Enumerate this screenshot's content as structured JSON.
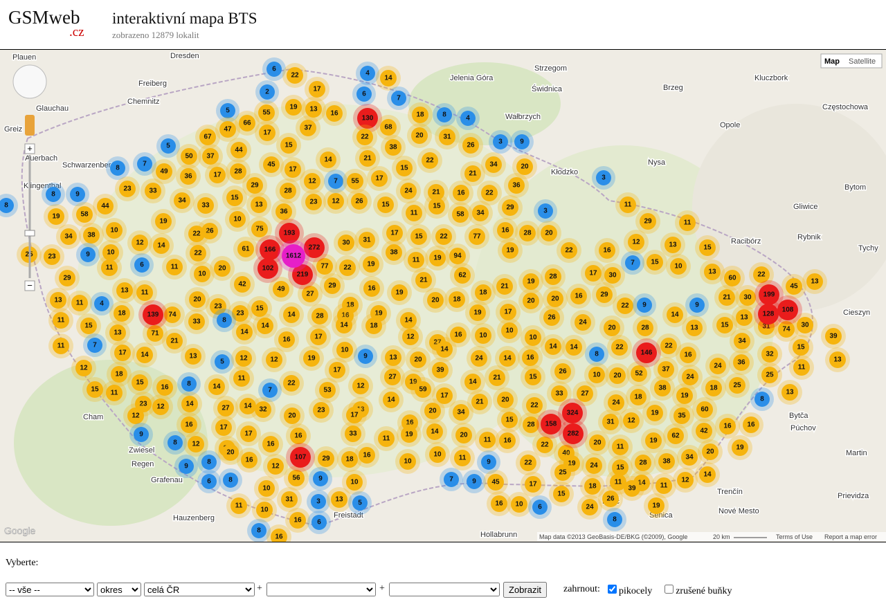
{
  "header": {
    "logo": "GSMweb",
    "logo_tld": ".cz",
    "title": "interaktivní mapa BTS",
    "subtitle": "zobrazeno 12879 lokalit"
  },
  "map": {
    "controls": {
      "map": "Map",
      "satellite": "Satellite",
      "zoom_in": "+",
      "zoom_out": "−"
    },
    "attribution": "Map data ©2013 GeoBasis-DE/BKG (©2009), Google",
    "scale": "20 km",
    "terms": "Terms of Use",
    "report": "Report a map error",
    "google": "Google",
    "places": [
      "Dresden",
      "Chemnitz",
      "Freiberg",
      "Glauchau",
      "Greiz",
      "Auerbach",
      "Schwarzenberg",
      "Klingenthal",
      "Plauen",
      "Cham",
      "Zwiesel",
      "Regen",
      "Grafenau",
      "Hauzenberg",
      "Strzegom",
      "Świdnica",
      "Wałbrzych",
      "Jelenia Góra",
      "Kłodzko",
      "Nysa",
      "Brzeg",
      "Opole",
      "Kluczbork",
      "Częstochowa",
      "Gliwice",
      "Bytom",
      "Racibórz",
      "Rybnik",
      "Tychy",
      "Cieszyn",
      "Bytča",
      "Púchov",
      "Martin",
      "Prievidza",
      "Trenčín",
      "Nové Mesto",
      "Senica",
      "Holíč",
      "Hollabrunn",
      "Freistadt"
    ],
    "markers": [
      6,
      22,
      4,
      14,
      2,
      17,
      6,
      7,
      5,
      55,
      19,
      13,
      16,
      130,
      68,
      18,
      8,
      4,
      66,
      47,
      17,
      37,
      15,
      22,
      38,
      20,
      31,
      26,
      3,
      9,
      5,
      67,
      50,
      37,
      44,
      8,
      7,
      49,
      36,
      17,
      28,
      45,
      17,
      14,
      21,
      15,
      22,
      21,
      34,
      20,
      3,
      8,
      9,
      23,
      33,
      8,
      44,
      34,
      33,
      15,
      29,
      28,
      12,
      7,
      55,
      17,
      24,
      21,
      16,
      22,
      36,
      3,
      11,
      29,
      11,
      58,
      19,
      34,
      38,
      10,
      19,
      26,
      10,
      13,
      36,
      23,
      12,
      26,
      15,
      11,
      15,
      58,
      34,
      29,
      23,
      25,
      9,
      10,
      12,
      14,
      22,
      61,
      75,
      30,
      31,
      17,
      15,
      22,
      77,
      16,
      28,
      20,
      12,
      13,
      15,
      16,
      22,
      19,
      19,
      94,
      11,
      38,
      19,
      22,
      77,
      22,
      20,
      11,
      10,
      11,
      6,
      29,
      15,
      7,
      10,
      13,
      22,
      45,
      13,
      60,
      21,
      30,
      17,
      30,
      19,
      28,
      21,
      18,
      62,
      21,
      19,
      16,
      18,
      29,
      27,
      49,
      42,
      11,
      13,
      4,
      13,
      11,
      74,
      18,
      20,
      23,
      23,
      15,
      14,
      28,
      16,
      19,
      14,
      20,
      18,
      19,
      17,
      20,
      20,
      16,
      29,
      22,
      9,
      9,
      14,
      13,
      28,
      20,
      24,
      26,
      11,
      15,
      13,
      71,
      33,
      8,
      14,
      14,
      16,
      17,
      14,
      18,
      12,
      27,
      16,
      10,
      10,
      10,
      14,
      14,
      22,
      22,
      13,
      15,
      34,
      31,
      74,
      30,
      39,
      11,
      7,
      17,
      14,
      21,
      13,
      5,
      12,
      12,
      19,
      10,
      9,
      13,
      20,
      14,
      24,
      14,
      16,
      26,
      8,
      10,
      20,
      52,
      37,
      16,
      24,
      36,
      32,
      15,
      13,
      12,
      18,
      15,
      16,
      8,
      14,
      11,
      22,
      17,
      12,
      27,
      19,
      39,
      14,
      21,
      15,
      33,
      27,
      24,
      25,
      11,
      15,
      11,
      23,
      12,
      14,
      27,
      14,
      7,
      32,
      53,
      13,
      14,
      59,
      17,
      21,
      20,
      22,
      24,
      18,
      38,
      19,
      18,
      25,
      8,
      13,
      12,
      16,
      17,
      17,
      20,
      23,
      17,
      16,
      20,
      34,
      15,
      28,
      31,
      12,
      19,
      35,
      60,
      9,
      8,
      12,
      20,
      16,
      16,
      33,
      11,
      19,
      14,
      20,
      11,
      16,
      22,
      40,
      20,
      11,
      19,
      62,
      42,
      16,
      16,
      9,
      8,
      20,
      16,
      12,
      29,
      18,
      16,
      10,
      10,
      11,
      9,
      22,
      19,
      24,
      15,
      28,
      38,
      34,
      20,
      19,
      6,
      8,
      10,
      56,
      9,
      10,
      7,
      9,
      45,
      17,
      25,
      18,
      11,
      14,
      11,
      12,
      14,
      11,
      10,
      31,
      3,
      13,
      5,
      16,
      10,
      6,
      15,
      24,
      26,
      39,
      19,
      8,
      16,
      16,
      6,
      8,
      139,
      193,
      166,
      272,
      102,
      219,
      199,
      108,
      128,
      146,
      324,
      158,
      282,
      107,
      1612
    ]
  },
  "form": {
    "label": "Vyberte:",
    "selects": [
      "-- vše --",
      "okres",
      "celá ČR"
    ],
    "plus": "+",
    "button": "Zobrazit",
    "include_label": "zahrnout:",
    "checkboxes": [
      {
        "label": "pikocely",
        "checked": true
      },
      {
        "label": "zrušené buňky",
        "checked": false
      }
    ]
  }
}
